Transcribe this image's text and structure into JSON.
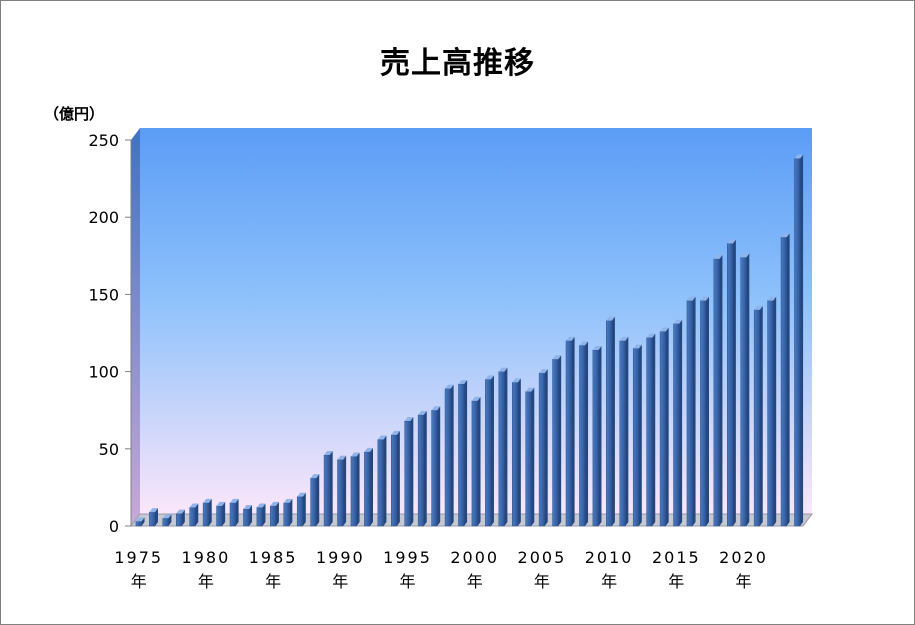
{
  "chart_data": {
    "type": "bar",
    "title": "売上高推移",
    "ylabel": "（億円）",
    "xlabel": "",
    "ylim": [
      0,
      250
    ],
    "yticks": [
      0,
      50,
      100,
      150,
      200,
      250
    ],
    "year_suffix": "年",
    "x_tick_years": [
      1975,
      1980,
      1985,
      1990,
      1995,
      2000,
      2005,
      2010,
      2015,
      2020
    ],
    "categories": [
      1975,
      1976,
      1977,
      1978,
      1979,
      1980,
      1981,
      1982,
      1983,
      1984,
      1985,
      1986,
      1987,
      1988,
      1989,
      1990,
      1991,
      1992,
      1993,
      1994,
      1995,
      1996,
      1997,
      1998,
      1999,
      2000,
      2001,
      2002,
      2003,
      2004,
      2005,
      2006,
      2007,
      2008,
      2009,
      2010,
      2011,
      2012,
      2013,
      2014,
      2015,
      2016,
      2017,
      2018,
      2019,
      2020,
      2021,
      2022,
      2023,
      2024
    ],
    "values": [
      3,
      9,
      5,
      8,
      12,
      15,
      13,
      15,
      11,
      12,
      13,
      15,
      19,
      31,
      46,
      43,
      45,
      48,
      56,
      59,
      68,
      72,
      75,
      89,
      92,
      81,
      95,
      100,
      93,
      87,
      99,
      108,
      120,
      117,
      114,
      133,
      120,
      115,
      122,
      126,
      131,
      146,
      146,
      173,
      183,
      174,
      140,
      146,
      187,
      238
    ],
    "grid": false,
    "legend": "none"
  }
}
